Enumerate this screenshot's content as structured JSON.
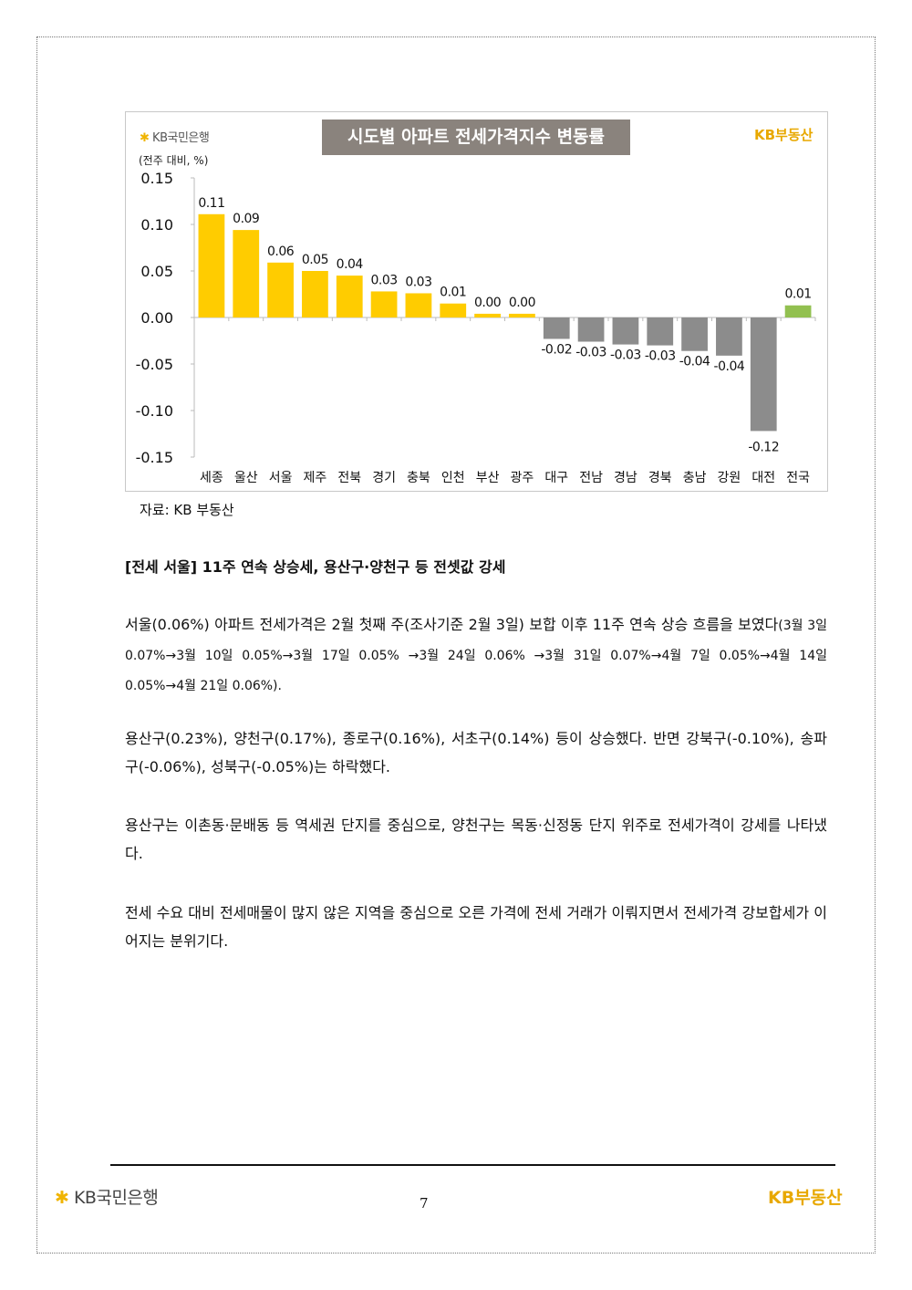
{
  "chart": {
    "bank_logo": "KB국민은행",
    "realestate_logo": "KB부동산",
    "title": "시도별 아파트 전세가격지수 변동률",
    "unit": "(전주 대비, %)",
    "source": "자료: KB 부동산"
  },
  "chart_data": {
    "type": "bar",
    "title": "시도별 아파트 전세가격지수 변동률",
    "ylabel": "(전주 대비, %)",
    "ylim": [
      -0.15,
      0.15
    ],
    "yticks": [
      "0.15",
      "0.10",
      "0.05",
      "0.00",
      "-0.05",
      "-0.10",
      "-0.15"
    ],
    "categories": [
      "세종",
      "울산",
      "서울",
      "제주",
      "전북",
      "경기",
      "충북",
      "인천",
      "부산",
      "광주",
      "대구",
      "전남",
      "경남",
      "경북",
      "충남",
      "강원",
      "대전",
      "전국"
    ],
    "values": [
      0.111,
      0.094,
      0.059,
      0.05,
      0.045,
      0.028,
      0.026,
      0.015,
      0.004,
      0.004,
      -0.023,
      -0.026,
      -0.029,
      -0.03,
      -0.036,
      -0.041,
      -0.122,
      0.013
    ],
    "labels": [
      "0.11",
      "0.09",
      "0.06",
      "0.05",
      "0.04",
      "0.03",
      "0.03",
      "0.01",
      "0.00",
      "0.00",
      "-0.02",
      "-0.03",
      "-0.03",
      "-0.03",
      "-0.04",
      "-0.04",
      "-0.12",
      "0.01"
    ],
    "colors": {
      "positive": "#ffcc00",
      "negative": "#8c8c8c",
      "national": "#92c050"
    }
  },
  "heading": "[전세 서울] 11주 연속 상승세, 용산구·양천구 등 전셋값 강세",
  "paragraphs": {
    "p1_main": "서울(0.06%) 아파트 전세가격은 2월 첫째 주(조사기준 2월 3일) 보합 이후 11주 연속 상승 흐름을 보였다",
    "p1_small": "(3월 3일 0.07%→3월 10일 0.05%→3월 17일 0.05% →3월 24일 0.06% →3월 31일 0.07%→4월 7일 0.05%→4월 14일 0.05%→4월 21일 0.06%).",
    "p2": "용산구(0.23%), 양천구(0.17%), 종로구(0.16%), 서초구(0.14%) 등이 상승했다. 반면 강북구(-0.10%), 송파구(-0.06%), 성북구(-0.05%)는 하락했다.",
    "p3": "용산구는 이촌동·문배동 등 역세권 단지를 중심으로, 양천구는 목동·신정동 단지 위주로 전세가격이 강세를 나타냈다.",
    "p4": "전세 수요 대비 전세매물이 많지 않은 지역을 중심으로 오른 가격에 전세 거래가 이뤄지면서 전세가격 강보합세가 이어지는 분위기다."
  },
  "footer": {
    "bank_logo": "KB국민은행",
    "realestate_logo": "KB부동산",
    "page_number": "7"
  }
}
